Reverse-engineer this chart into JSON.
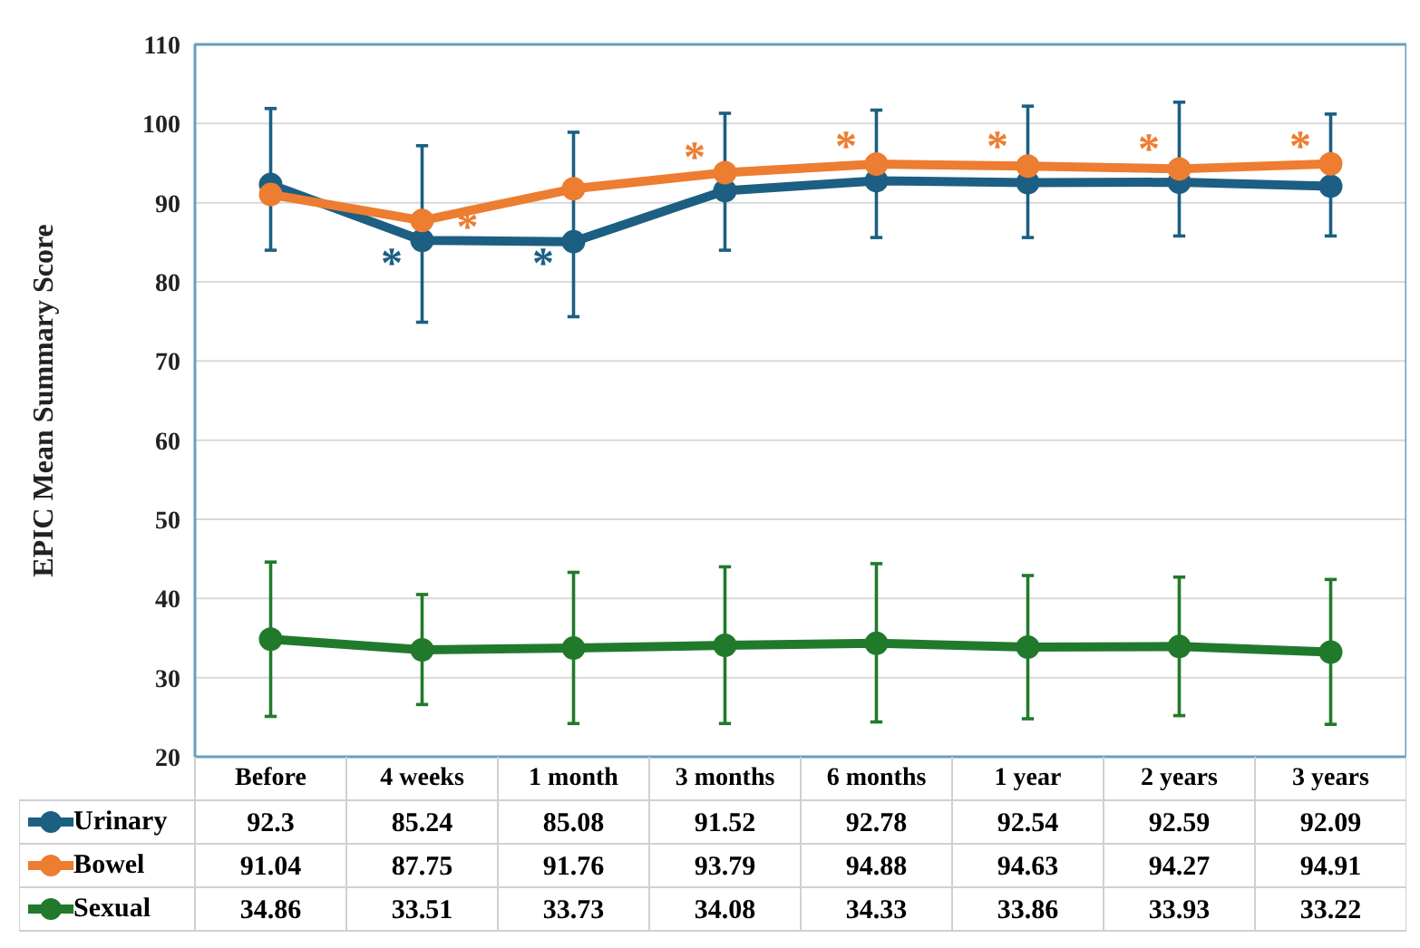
{
  "chart_data": {
    "type": "line",
    "ylabel": "EPIC Mean Summary Score",
    "categories": [
      "Before",
      "4 weeks",
      "1 month",
      "3 months",
      "6 months",
      "1 year",
      "2 years",
      "3 years"
    ],
    "series": [
      {
        "name": "Urinary",
        "color": "#1c5f82",
        "values": [
          92.3,
          85.24,
          85.08,
          91.52,
          92.78,
          92.54,
          92.59,
          92.09
        ],
        "errors": [
          [
            84.0,
            101.9
          ],
          [
            74.9,
            97.2
          ],
          [
            75.6,
            98.9
          ],
          [
            84.0,
            101.3
          ],
          [
            85.6,
            101.7
          ],
          [
            85.6,
            102.2
          ],
          [
            85.8,
            102.7
          ],
          [
            85.8,
            101.2
          ]
        ]
      },
      {
        "name": "Bowel",
        "color": "#ed7d31",
        "values": [
          91.04,
          87.75,
          91.76,
          93.79,
          94.88,
          94.63,
          94.27,
          94.91
        ]
      },
      {
        "name": "Sexual",
        "color": "#217a2b",
        "values": [
          34.86,
          33.51,
          33.73,
          34.08,
          34.33,
          33.86,
          33.93,
          33.22
        ],
        "errors": [
          [
            25.1,
            44.6
          ],
          [
            26.6,
            40.5
          ],
          [
            24.2,
            43.3
          ],
          [
            24.2,
            44.0
          ],
          [
            24.4,
            44.4
          ],
          [
            24.8,
            42.9
          ],
          [
            25.2,
            42.7
          ],
          [
            24.1,
            42.4
          ]
        ]
      }
    ],
    "ylim": [
      20,
      110
    ],
    "yticks": [
      20,
      30,
      40,
      50,
      60,
      70,
      80,
      90,
      100,
      110
    ],
    "grid": "y",
    "marker": "circle",
    "line_style": "solid",
    "legend": "bottom",
    "data_labels": true,
    "annotations": [
      {
        "text": "*",
        "x": "4 weeks",
        "y": 82.2
      },
      {
        "text": "*",
        "x": "1 month",
        "y": 82.2
      },
      {
        "text": "*",
        "x": "4 weeks",
        "y": 86.8
      },
      {
        "text": "*",
        "x": "3 months",
        "y": 95.6
      },
      {
        "text": "*",
        "x": "6 months",
        "y": 97.0
      },
      {
        "text": "*",
        "x": "1 year",
        "y": 97.0
      },
      {
        "text": "*",
        "x": "2 years",
        "y": 96.6
      },
      {
        "text": "*",
        "x": "3 years",
        "y": 97.0
      }
    ]
  }
}
